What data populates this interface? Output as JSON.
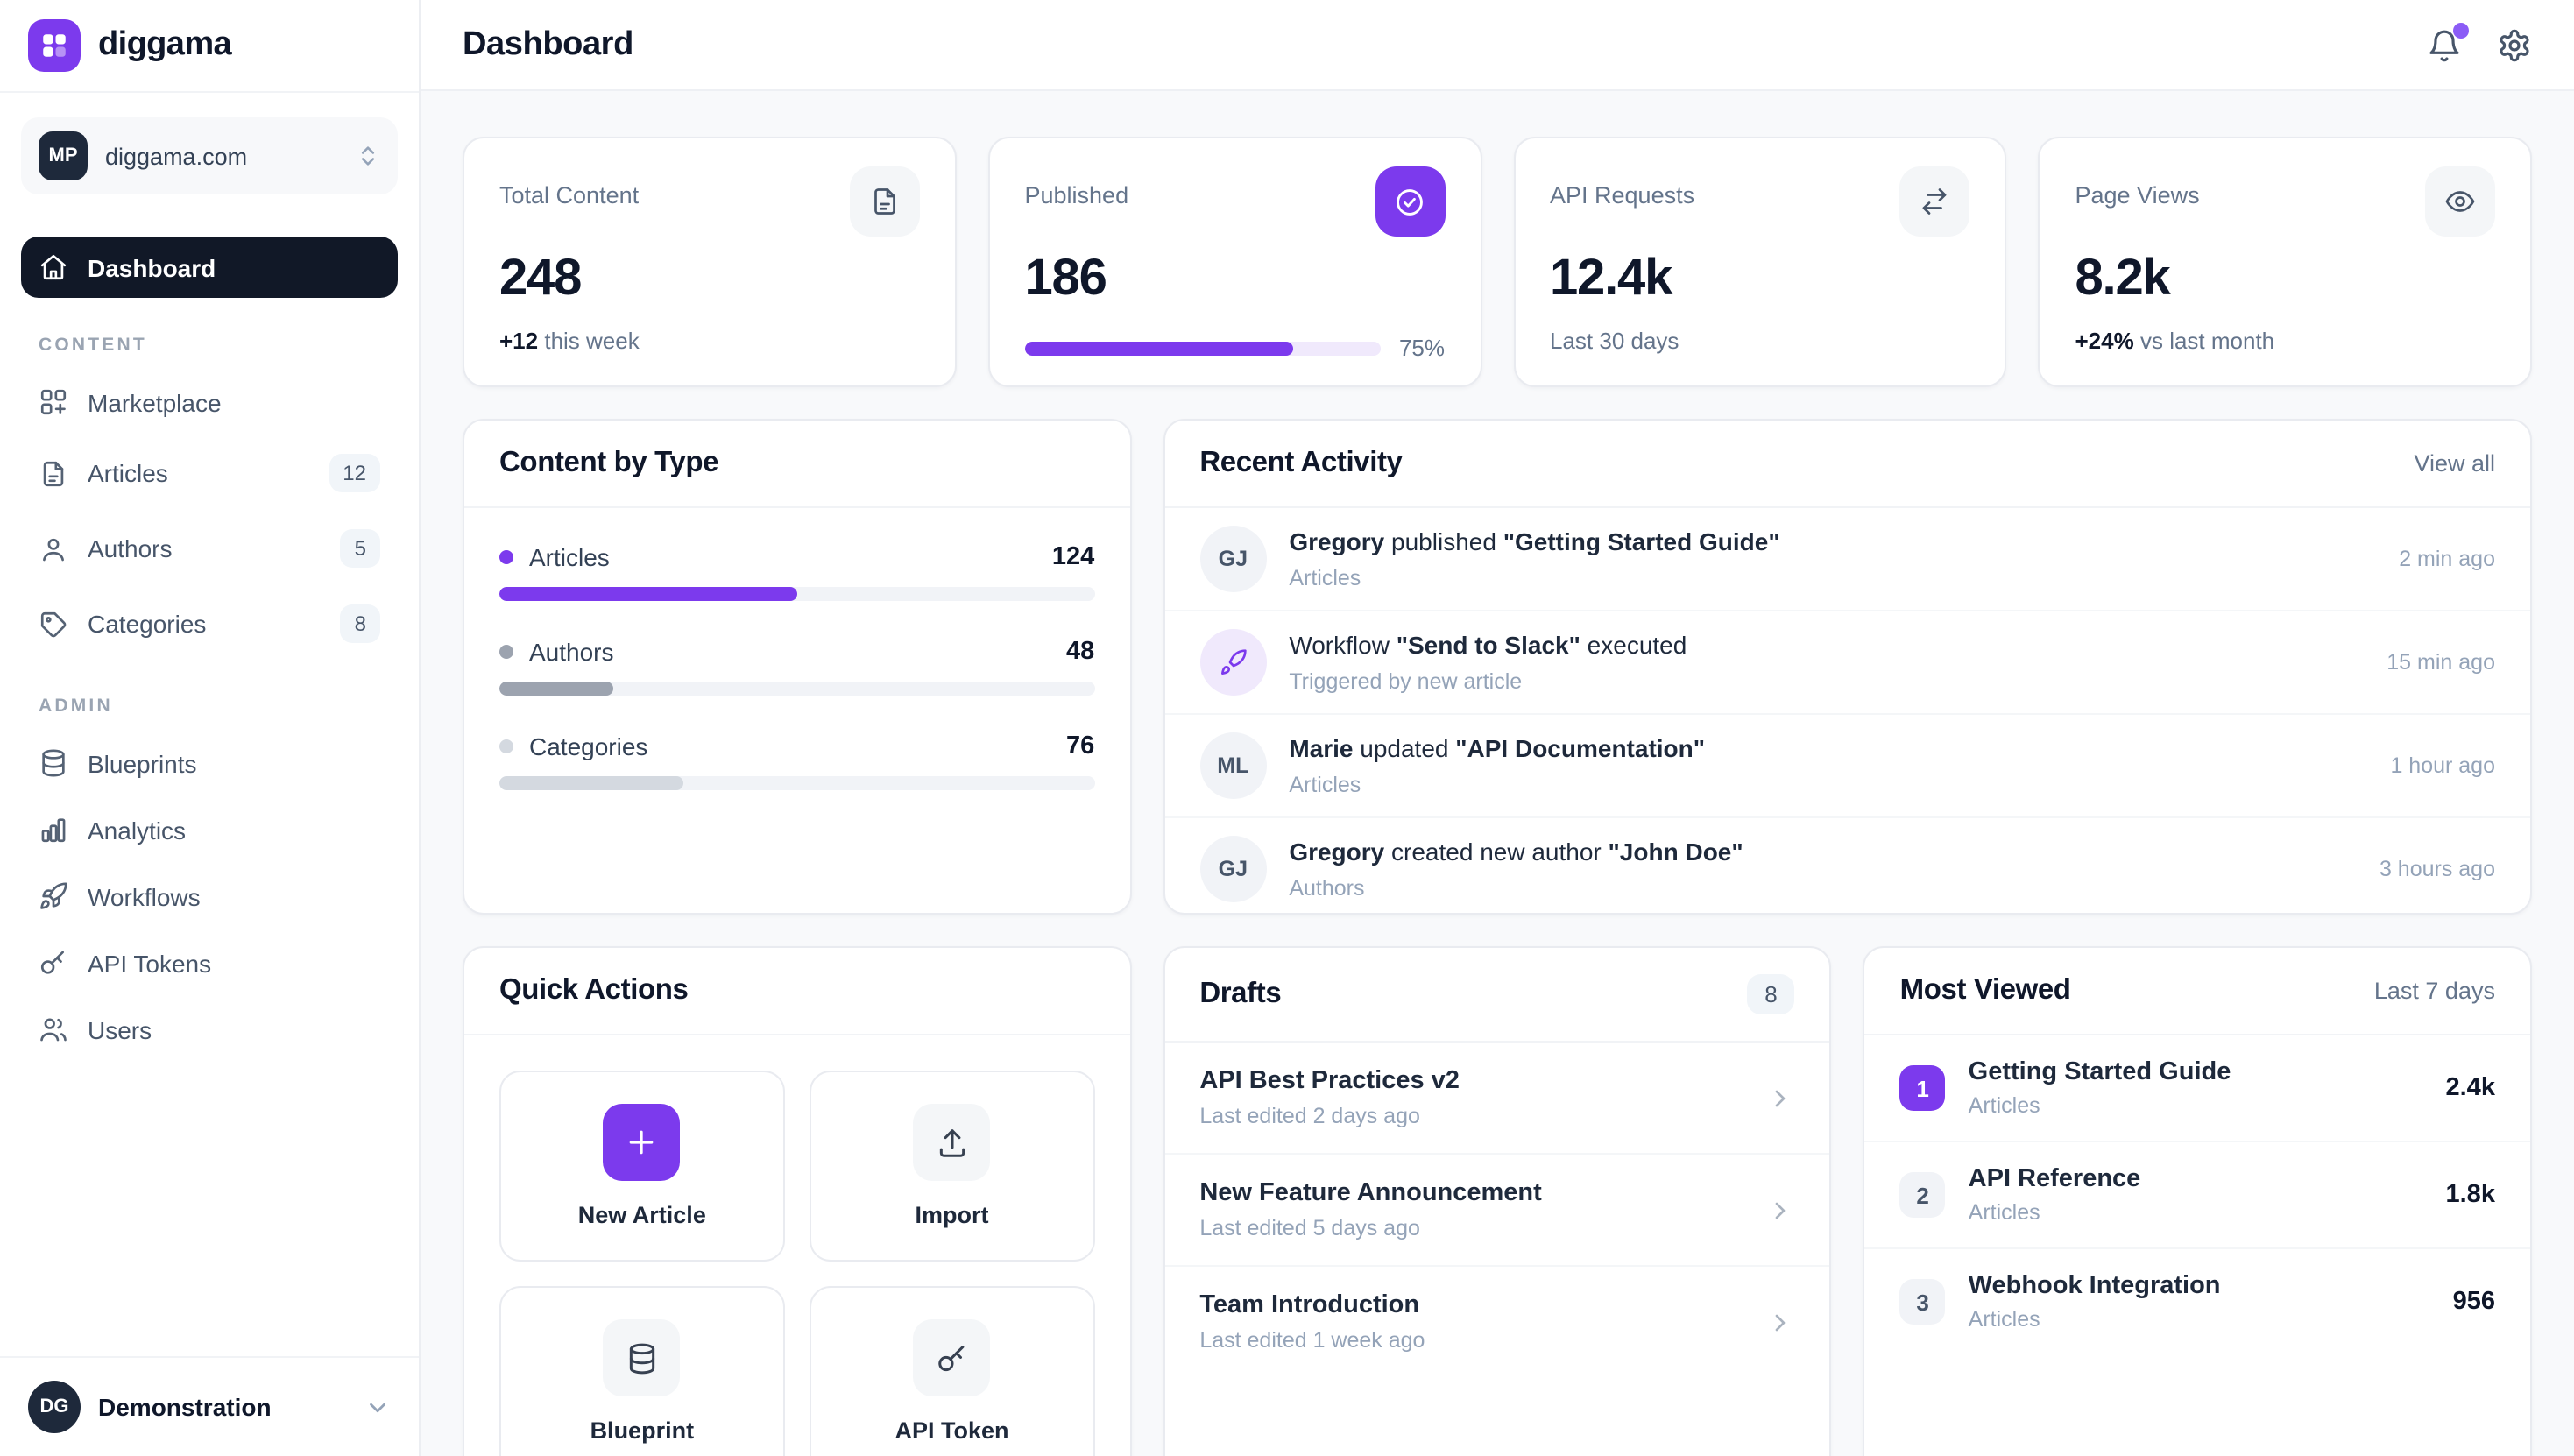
{
  "colors": {
    "accent": "#7c3aed",
    "notification_dot": "#8b5cf6",
    "active_nav_bg": "#111827"
  },
  "brand": {
    "name": "diggama"
  },
  "workspace": {
    "initials": "MP",
    "name": "diggama.com"
  },
  "nav": {
    "main": [
      {
        "label": "Dashboard"
      }
    ],
    "sections": [
      {
        "label": "CONTENT",
        "items": [
          {
            "label": "Marketplace"
          },
          {
            "label": "Articles",
            "badge": "12"
          },
          {
            "label": "Authors",
            "badge": "5"
          },
          {
            "label": "Categories",
            "badge": "8"
          }
        ]
      },
      {
        "label": "ADMIN",
        "items": [
          {
            "label": "Blueprints"
          },
          {
            "label": "Analytics"
          },
          {
            "label": "Workflows"
          },
          {
            "label": "API Tokens"
          },
          {
            "label": "Users"
          }
        ]
      }
    ]
  },
  "user": {
    "initials": "DG",
    "name": "Demonstration"
  },
  "header": {
    "title": "Dashboard"
  },
  "stats": [
    {
      "label": "Total Content",
      "value": "248",
      "sub_strong": "+12",
      "sub_rest": " this week"
    },
    {
      "label": "Published",
      "value": "186",
      "progress_pct": 75,
      "progress_label": "75%"
    },
    {
      "label": "API Requests",
      "value": "12.4k",
      "sub_rest": "Last 30 days"
    },
    {
      "label": "Page Views",
      "value": "8.2k",
      "sub_strong": "+24%",
      "sub_rest": " vs last month"
    }
  ],
  "content_by_type": {
    "title": "Content by Type",
    "rows": [
      {
        "label": "Articles",
        "value": "124",
        "pct": 50,
        "color": "#7c3aed"
      },
      {
        "label": "Authors",
        "value": "48",
        "pct": 19,
        "color": "#9ca3af"
      },
      {
        "label": "Categories",
        "value": "76",
        "pct": 31,
        "color": "#d4d9e0"
      }
    ]
  },
  "recent_activity": {
    "title": "Recent Activity",
    "action": "View all",
    "items": [
      {
        "avatar": "GJ",
        "parts": [
          "Gregory",
          " published ",
          "\"Getting Started Guide\""
        ],
        "sub": "Articles",
        "time": "2 min ago"
      },
      {
        "avatar": "workflow",
        "parts": [
          "Workflow ",
          "\"Send to Slack\"",
          " executed"
        ],
        "sub": "Triggered by new article",
        "time": "15 min ago"
      },
      {
        "avatar": "ML",
        "parts": [
          "Marie",
          " updated ",
          "\"API Documentation\""
        ],
        "sub": "Articles",
        "time": "1 hour ago"
      },
      {
        "avatar": "GJ",
        "parts": [
          "Gregory",
          " created new author ",
          "\"John Doe\""
        ],
        "sub": "Authors",
        "time": "3 hours ago"
      }
    ]
  },
  "quick_actions": {
    "title": "Quick Actions",
    "actions": [
      {
        "label": "New Article"
      },
      {
        "label": "Import"
      },
      {
        "label": "Blueprint"
      },
      {
        "label": "API Token"
      }
    ]
  },
  "drafts": {
    "title": "Drafts",
    "badge": "8",
    "items": [
      {
        "title": "API Best Practices v2",
        "sub": "Last edited 2 days ago"
      },
      {
        "title": "New Feature Announcement",
        "sub": "Last edited 5 days ago"
      },
      {
        "title": "Team Introduction",
        "sub": "Last edited 1 week ago"
      }
    ]
  },
  "most_viewed": {
    "title": "Most Viewed",
    "period": "Last 7 days",
    "items": [
      {
        "rank": "1",
        "title": "Getting Started Guide",
        "category": "Articles",
        "views": "2.4k"
      },
      {
        "rank": "2",
        "title": "API Reference",
        "category": "Articles",
        "views": "1.8k"
      },
      {
        "rank": "3",
        "title": "Webhook Integration",
        "category": "Articles",
        "views": "956"
      }
    ]
  }
}
